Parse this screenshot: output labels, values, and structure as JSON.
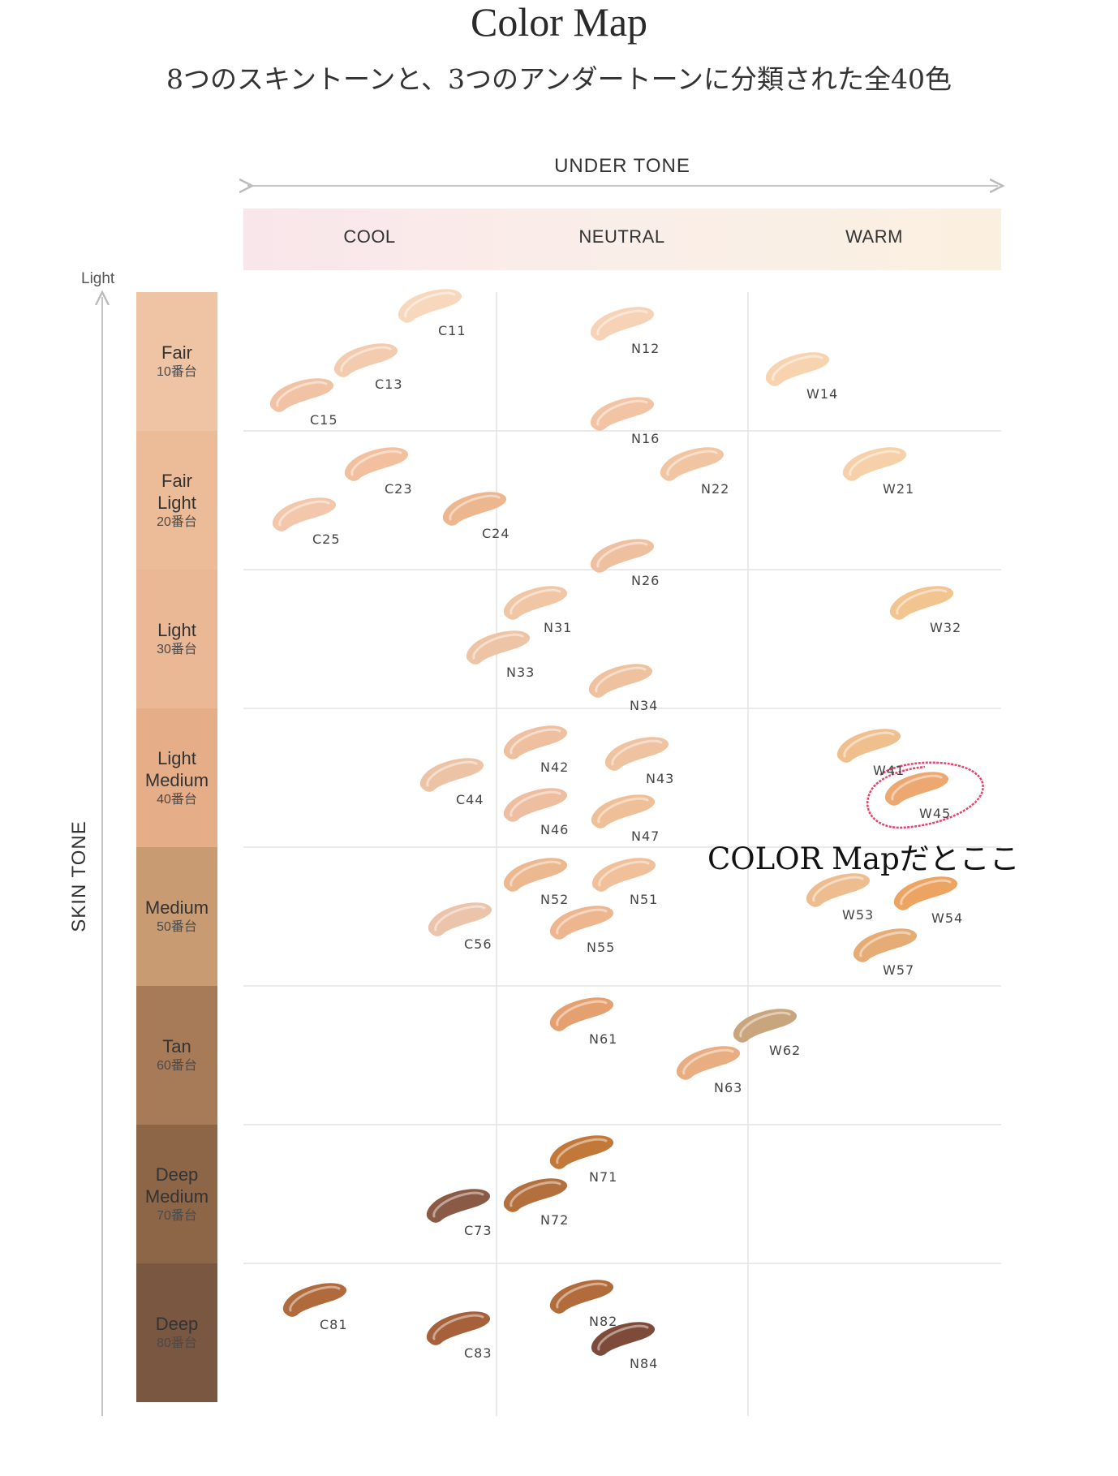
{
  "title": "Color Map",
  "subtitle": "8つのスキントーンと、3つのアンダートーンに分類された全40色",
  "under_tone_label": "UNDER TONE",
  "skin_tone_label": "SKIN TONE",
  "light_label": "Light",
  "annotation": "COLOR Mapだとここ",
  "under_tones": [
    "COOL",
    "NEUTRAL",
    "WARM"
  ],
  "skin_tones": [
    {
      "name": "Fair",
      "number": "10番台",
      "color": "#efc4a4"
    },
    {
      "name": "Fair\nLight",
      "number": "20番台",
      "color": "#ecbc98"
    },
    {
      "name": "Light",
      "number": "30番台",
      "color": "#ebb895"
    },
    {
      "name": "Light\nMedium",
      "number": "40番台",
      "color": "#e5ae88"
    },
    {
      "name": "Medium",
      "number": "50番台",
      "color": "#c99b72"
    },
    {
      "name": "Tan",
      "number": "60番台",
      "color": "#a87b58"
    },
    {
      "name": "Deep\nMedium",
      "number": "70番台",
      "color": "#8d6648"
    },
    {
      "name": "Deep",
      "number": "80番台",
      "color": "#795740"
    }
  ],
  "shades": [
    {
      "code": "C11",
      "color": "#f7d8bd"
    },
    {
      "code": "C13",
      "color": "#f3cbae"
    },
    {
      "code": "C15",
      "color": "#f1c3a4"
    },
    {
      "code": "N12",
      "color": "#f6d2b6"
    },
    {
      "code": "N16",
      "color": "#f2c4a4"
    },
    {
      "code": "W14",
      "color": "#f7d3b0"
    },
    {
      "code": "C23",
      "color": "#f2c09e"
    },
    {
      "code": "C25",
      "color": "#f2c7ab"
    },
    {
      "code": "C24",
      "color": "#ecb68e"
    },
    {
      "code": "N22",
      "color": "#f2c5a2"
    },
    {
      "code": "N26",
      "color": "#efc0a0"
    },
    {
      "code": "W21",
      "color": "#f5d0a9"
    },
    {
      "code": "N31",
      "color": "#f0c6a4"
    },
    {
      "code": "N33",
      "color": "#eec4a6"
    },
    {
      "code": "N34",
      "color": "#eec29f"
    },
    {
      "code": "W32",
      "color": "#f2c490"
    },
    {
      "code": "C44",
      "color": "#ecc3a5"
    },
    {
      "code": "N42",
      "color": "#eec0a0"
    },
    {
      "code": "N43",
      "color": "#efc2a0"
    },
    {
      "code": "N46",
      "color": "#eebea0"
    },
    {
      "code": "N47",
      "color": "#efbf98"
    },
    {
      "code": "W41",
      "color": "#efc08e"
    },
    {
      "code": "W45",
      "color": "#eda871"
    },
    {
      "code": "C56",
      "color": "#ecc4ac"
    },
    {
      "code": "N52",
      "color": "#ecb890"
    },
    {
      "code": "N51",
      "color": "#efc09a"
    },
    {
      "code": "N55",
      "color": "#edb68f"
    },
    {
      "code": "W53",
      "color": "#edbd90"
    },
    {
      "code": "W54",
      "color": "#eca462"
    },
    {
      "code": "W57",
      "color": "#e6ac76"
    },
    {
      "code": "N61",
      "color": "#e5a070"
    },
    {
      "code": "W62",
      "color": "#c9a57e"
    },
    {
      "code": "N63",
      "color": "#e8ad80"
    },
    {
      "code": "C73",
      "color": "#8a5a45"
    },
    {
      "code": "N71",
      "color": "#c27838"
    },
    {
      "code": "N72",
      "color": "#b36f3c"
    },
    {
      "code": "C81",
      "color": "#b06a3c"
    },
    {
      "code": "C83",
      "color": "#a6603a"
    },
    {
      "code": "N82",
      "color": "#b26b3a"
    },
    {
      "code": "N84",
      "color": "#7e4b3a"
    }
  ],
  "highlight": {
    "code": "W45",
    "color": "#e8416a"
  }
}
